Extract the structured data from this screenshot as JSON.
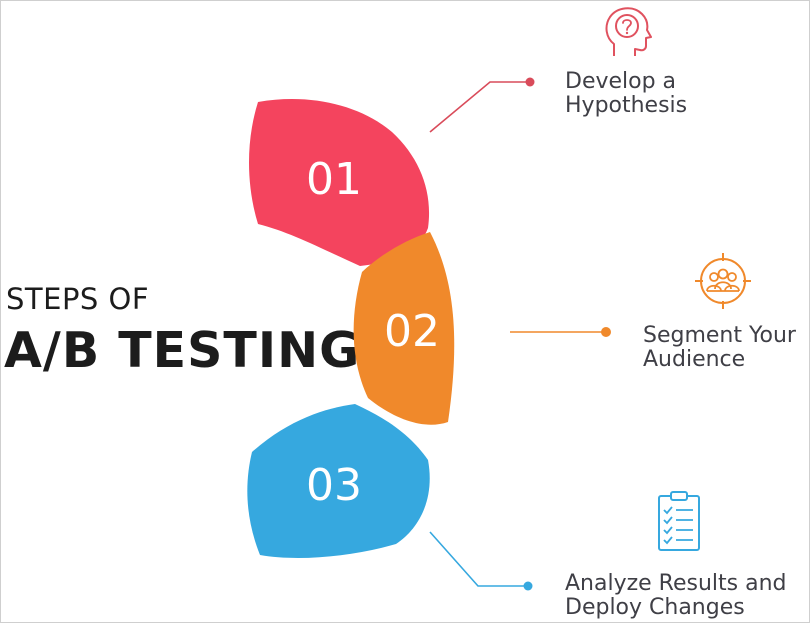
{
  "title": {
    "line1": "STEPS OF",
    "line2": "A/B TESTING"
  },
  "steps": [
    {
      "number": "01",
      "label_line1": "Develop a",
      "label_line2": "Hypothesis",
      "color": "#f4445e",
      "icon": "head-question-icon"
    },
    {
      "number": "02",
      "label_line1": "Segment Your",
      "label_line2": "Audience",
      "color": "#f0892b",
      "icon": "audience-target-icon"
    },
    {
      "number": "03",
      "label_line1": "Analyze Results and",
      "label_line2": "Deploy Changes",
      "color": "#36a8df",
      "icon": "clipboard-checklist-icon"
    }
  ]
}
